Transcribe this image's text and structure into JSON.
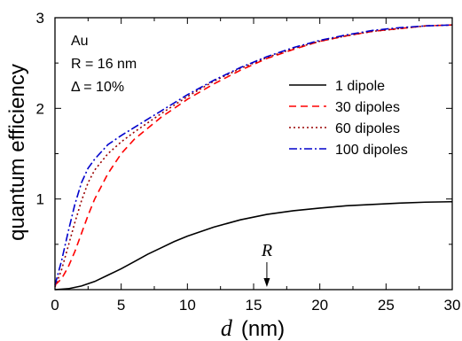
{
  "chart_data": {
    "type": "line",
    "xlabel_symbol": "d",
    "xlabel_unit": "(nm)",
    "ylabel": "quantum efficiency",
    "xlim": [
      0,
      30
    ],
    "ylim": [
      0,
      3
    ],
    "xticks": [
      0,
      5,
      10,
      15,
      20,
      25,
      30
    ],
    "yticks": [
      1,
      2,
      3
    ],
    "annotations": [
      "Au",
      "R = 16 nm",
      "Δ = 10%"
    ],
    "marker_label": "R",
    "marker_x": 16,
    "legend_position": "right",
    "colors": {
      "series1": "#000000",
      "series2": "#ff0000",
      "series3": "#990000",
      "series4": "#0000cc"
    },
    "series": [
      {
        "name": "1 dipole",
        "dash": "solid",
        "x": [
          0,
          1,
          2,
          3,
          4,
          5,
          6,
          7,
          8,
          9,
          10,
          12,
          14,
          16,
          18,
          20,
          22,
          24,
          26,
          28,
          30
        ],
        "y": [
          0.0,
          0.01,
          0.04,
          0.09,
          0.16,
          0.23,
          0.31,
          0.39,
          0.46,
          0.53,
          0.59,
          0.69,
          0.77,
          0.83,
          0.87,
          0.9,
          0.925,
          0.94,
          0.955,
          0.965,
          0.97
        ]
      },
      {
        "name": "30 dipoles",
        "dash": "dashed",
        "x": [
          0,
          0.5,
          1,
          1.5,
          2,
          2.5,
          3,
          4,
          5,
          6,
          7,
          8,
          10,
          12,
          14,
          16,
          18,
          20,
          22,
          24,
          26,
          28,
          30
        ],
        "y": [
          0.05,
          0.12,
          0.25,
          0.42,
          0.62,
          0.82,
          1.0,
          1.28,
          1.5,
          1.66,
          1.78,
          1.9,
          2.1,
          2.27,
          2.42,
          2.55,
          2.65,
          2.74,
          2.8,
          2.85,
          2.88,
          2.91,
          2.92
        ]
      },
      {
        "name": "60 dipoles",
        "dash": "dotted",
        "x": [
          0,
          0.5,
          1,
          1.5,
          2,
          2.5,
          3,
          4,
          5,
          6,
          7,
          8,
          10,
          12,
          14,
          16,
          18,
          20,
          22,
          24,
          26,
          28,
          30
        ],
        "y": [
          0.03,
          0.22,
          0.48,
          0.74,
          0.98,
          1.18,
          1.32,
          1.5,
          1.63,
          1.74,
          1.84,
          1.94,
          2.13,
          2.3,
          2.44,
          2.56,
          2.66,
          2.74,
          2.8,
          2.85,
          2.88,
          2.91,
          2.92
        ]
      },
      {
        "name": "100 dipoles",
        "dash": "dashdot",
        "x": [
          0,
          0.5,
          1,
          1.5,
          2,
          2.5,
          3,
          4,
          5,
          6,
          7,
          8,
          10,
          12,
          14,
          16,
          18,
          20,
          22,
          24,
          26,
          28,
          30
        ],
        "y": [
          0.05,
          0.32,
          0.64,
          0.94,
          1.18,
          1.34,
          1.44,
          1.6,
          1.7,
          1.79,
          1.88,
          1.97,
          2.15,
          2.31,
          2.45,
          2.57,
          2.67,
          2.75,
          2.81,
          2.86,
          2.89,
          2.91,
          2.92
        ]
      }
    ]
  }
}
